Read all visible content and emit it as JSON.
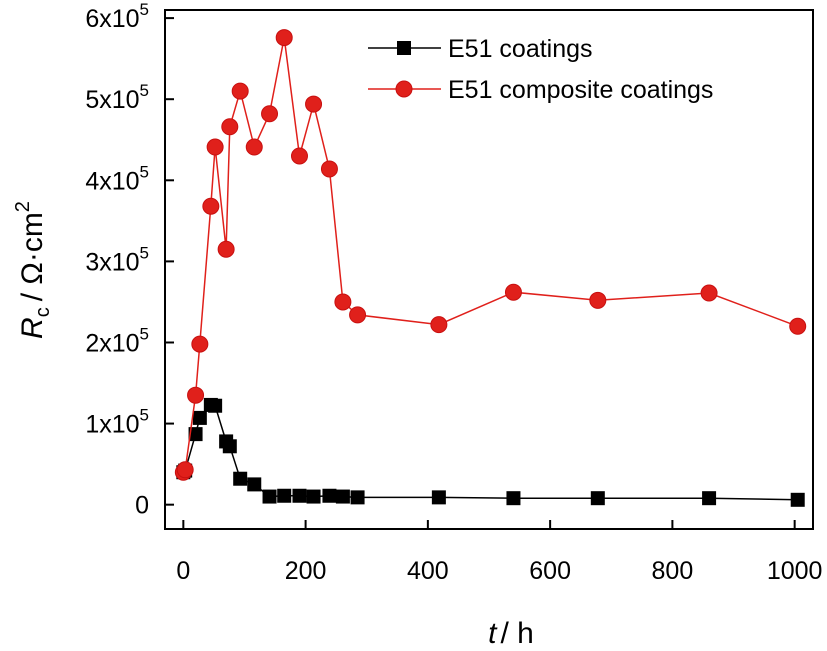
{
  "chart_data": {
    "type": "line",
    "xlabel_var": "t",
    "xlabel_unit": "/ h",
    "ylabel_var": "R",
    "ylabel_sub": "c",
    "ylabel_unit": "/ Ω·cm",
    "ylabel_unit_sup": "2",
    "xlim": [
      -30,
      1030
    ],
    "ylim": [
      -30000,
      610000
    ],
    "x_ticks": [
      0,
      200,
      400,
      600,
      800,
      1000
    ],
    "x_tick_labels": [
      "0",
      "200",
      "400",
      "600",
      "800",
      "1000"
    ],
    "y_ticks": [
      0,
      100000,
      200000,
      300000,
      400000,
      500000,
      600000
    ],
    "y_tick_labels": [
      {
        "base": "0",
        "exp": ""
      },
      {
        "base": "1x10",
        "exp": "5"
      },
      {
        "base": "2x10",
        "exp": "5"
      },
      {
        "base": "3x10",
        "exp": "5"
      },
      {
        "base": "4x10",
        "exp": "5"
      },
      {
        "base": "5x10",
        "exp": "5"
      },
      {
        "base": "6x10",
        "exp": "5"
      }
    ],
    "legend_position": "top-right",
    "series": [
      {
        "name": "E51 coatings",
        "color": "#000000",
        "marker": "square",
        "x": [
          0,
          3,
          20,
          27,
          45,
          52,
          70,
          76,
          93,
          116,
          141,
          165,
          190,
          213,
          239,
          261,
          285,
          418,
          540,
          678,
          860,
          1005
        ],
        "y": [
          40000,
          42000,
          87000,
          107000,
          123000,
          122000,
          78000,
          72000,
          32000,
          25000,
          10000,
          11000,
          11000,
          10000,
          11000,
          10000,
          9000,
          9000,
          8000,
          8000,
          8000,
          6000
        ]
      },
      {
        "name": "E51 composite coatings",
        "color": "#e0201b",
        "marker": "circle",
        "x": [
          0,
          3,
          20,
          27,
          45,
          52,
          70,
          76,
          93,
          116,
          141,
          165,
          190,
          213,
          239,
          261,
          285,
          418,
          540,
          678,
          860,
          1005
        ],
        "y": [
          40000,
          43000,
          135000,
          198000,
          368000,
          441000,
          315000,
          466000,
          510000,
          441000,
          482000,
          576000,
          430000,
          494000,
          414000,
          250000,
          234000,
          222000,
          262000,
          252000,
          261000,
          220000
        ]
      }
    ]
  }
}
